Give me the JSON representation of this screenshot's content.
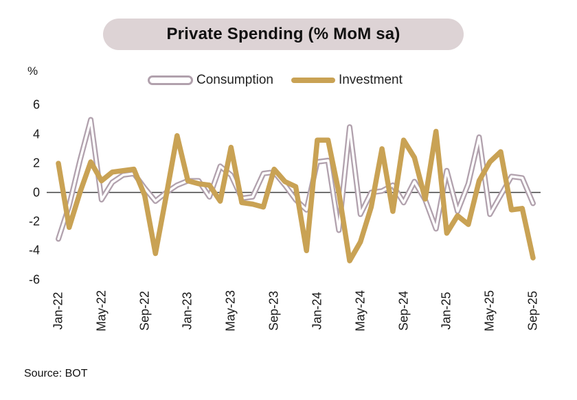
{
  "title": "Private Spending (% MoM sa)",
  "unit_label": "%",
  "source": "Source: BOT",
  "legend": [
    {
      "label": "Consumption"
    },
    {
      "label": "Investment"
    }
  ],
  "colors": {
    "consumption": "#b1a1ad",
    "consumption_core": "#ffffff",
    "investment": "#c9a254",
    "title_pill_bg": "#ddd3d5",
    "axis_line": "#3f3f3f",
    "text": "#1a1a1a"
  },
  "chart_data": {
    "type": "line",
    "title": "Private Spending (% MoM sa)",
    "ylabel": "%",
    "ylim": [
      -6,
      6
    ],
    "yticks": [
      6,
      4,
      2,
      0,
      -2,
      -4,
      -6
    ],
    "grid": false,
    "legend_position": "top",
    "x": [
      "Jan-22",
      "Feb-22",
      "Mar-22",
      "Apr-22",
      "May-22",
      "Jun-22",
      "Jul-22",
      "Aug-22",
      "Sep-22",
      "Oct-22",
      "Nov-22",
      "Dec-22",
      "Jan-23",
      "Feb-23",
      "Mar-23",
      "Apr-23",
      "May-23",
      "Jun-23",
      "Jul-23",
      "Aug-23",
      "Sep-23",
      "Oct-23",
      "Nov-23",
      "Dec-23",
      "Jan-24",
      "Feb-24",
      "Mar-24",
      "Apr-24",
      "May-24",
      "Jun-24",
      "Jul-24",
      "Aug-24",
      "Sep-24",
      "Oct-24",
      "Nov-24",
      "Dec-24",
      "Jan-25",
      "Feb-25",
      "Mar-25",
      "Apr-25",
      "May-25",
      "Jun-25",
      "Jul-25",
      "Aug-25",
      "Sep-25"
    ],
    "x_tick_step": 4,
    "series": [
      {
        "name": "Consumption",
        "values": [
          -3.2,
          -0.9,
          2.2,
          5.0,
          -0.5,
          0.7,
          1.2,
          1.3,
          0.3,
          -0.6,
          0.0,
          0.5,
          0.8,
          0.8,
          -0.3,
          1.8,
          1.2,
          -0.4,
          -0.3,
          1.3,
          1.4,
          0.5,
          -0.5,
          -1.2,
          2.1,
          2.2,
          -2.6,
          4.5,
          -1.5,
          0.0,
          0.1,
          0.5,
          -0.7,
          0.75,
          -0.5,
          -2.5,
          1.5,
          -1.3,
          0.6,
          3.8,
          -1.5,
          -0.2,
          1.1,
          1.0,
          -0.75
        ]
      },
      {
        "name": "Investment",
        "values": [
          2.0,
          -2.4,
          0.0,
          2.1,
          0.8,
          1.4,
          1.5,
          1.6,
          -0.2,
          -4.2,
          -0.2,
          3.9,
          0.8,
          0.6,
          0.5,
          -0.6,
          3.1,
          -0.7,
          -0.8,
          -1.0,
          1.6,
          0.75,
          0.4,
          -4.0,
          3.6,
          3.6,
          0.0,
          -4.7,
          -3.4,
          -1.0,
          3.0,
          -1.3,
          3.6,
          2.4,
          -0.45,
          4.2,
          -2.8,
          -1.6,
          -2.2,
          0.8,
          2.1,
          2.8,
          -1.2,
          -1.1,
          -4.5
        ]
      }
    ]
  }
}
